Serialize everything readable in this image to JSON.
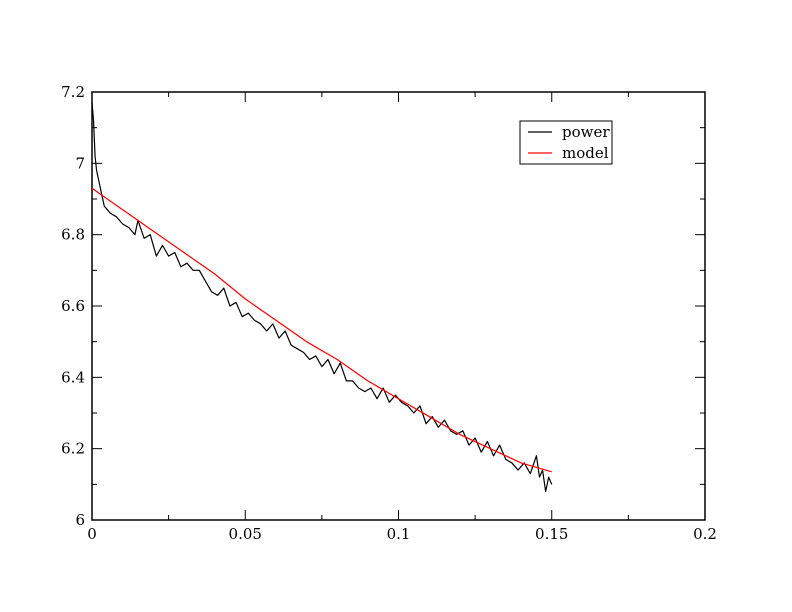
{
  "chart_data": {
    "type": "line",
    "title": "",
    "xlabel": "",
    "ylabel": "",
    "xlim": [
      0,
      0.2
    ],
    "ylim": [
      6.0,
      7.2
    ],
    "x_ticks": [
      0,
      0.05,
      0.1,
      0.15,
      0.2
    ],
    "x_tick_labels": [
      "0",
      "0.05",
      "0.1",
      "0.15",
      "0.2"
    ],
    "y_ticks": [
      6.0,
      6.2,
      6.4,
      6.6,
      6.8,
      7.0,
      7.2
    ],
    "y_tick_labels": [
      "6",
      "6.2",
      "6.4",
      "6.6",
      "6.8",
      "7",
      "7.2"
    ],
    "grid": false,
    "legend_position": "top-right",
    "series": [
      {
        "name": "power",
        "color": "#000000",
        "x": [
          0.0,
          0.0005,
          0.001,
          0.0015,
          0.002,
          0.0025,
          0.003,
          0.004,
          0.005,
          0.006,
          0.008,
          0.01,
          0.012,
          0.014,
          0.015,
          0.017,
          0.019,
          0.021,
          0.023,
          0.025,
          0.027,
          0.029,
          0.031,
          0.033,
          0.035,
          0.037,
          0.039,
          0.041,
          0.043,
          0.045,
          0.047,
          0.049,
          0.051,
          0.053,
          0.055,
          0.057,
          0.059,
          0.061,
          0.063,
          0.065,
          0.067,
          0.069,
          0.071,
          0.073,
          0.075,
          0.077,
          0.079,
          0.081,
          0.083,
          0.085,
          0.087,
          0.089,
          0.091,
          0.093,
          0.095,
          0.097,
          0.099,
          0.101,
          0.103,
          0.105,
          0.107,
          0.109,
          0.111,
          0.113,
          0.115,
          0.117,
          0.119,
          0.121,
          0.123,
          0.125,
          0.127,
          0.129,
          0.131,
          0.133,
          0.135,
          0.137,
          0.139,
          0.141,
          0.143,
          0.145,
          0.146,
          0.147,
          0.148,
          0.149,
          0.15
        ],
        "values": [
          7.17,
          7.12,
          7.02,
          6.98,
          6.96,
          6.94,
          6.92,
          6.88,
          6.87,
          6.86,
          6.85,
          6.83,
          6.82,
          6.8,
          6.84,
          6.79,
          6.8,
          6.74,
          6.77,
          6.74,
          6.75,
          6.71,
          6.72,
          6.7,
          6.7,
          6.67,
          6.64,
          6.63,
          6.65,
          6.6,
          6.61,
          6.57,
          6.58,
          6.56,
          6.55,
          6.53,
          6.55,
          6.51,
          6.53,
          6.49,
          6.48,
          6.47,
          6.45,
          6.46,
          6.43,
          6.45,
          6.41,
          6.44,
          6.39,
          6.39,
          6.37,
          6.36,
          6.37,
          6.34,
          6.37,
          6.33,
          6.35,
          6.33,
          6.32,
          6.3,
          6.32,
          6.27,
          6.29,
          6.26,
          6.28,
          6.25,
          6.24,
          6.25,
          6.21,
          6.23,
          6.19,
          6.22,
          6.18,
          6.21,
          6.17,
          6.16,
          6.14,
          6.16,
          6.13,
          6.18,
          6.12,
          6.14,
          6.08,
          6.12,
          6.1
        ]
      },
      {
        "name": "model",
        "color": "#ff0000",
        "x": [
          0.0,
          0.01,
          0.02,
          0.03,
          0.04,
          0.05,
          0.06,
          0.07,
          0.08,
          0.09,
          0.1,
          0.11,
          0.12,
          0.13,
          0.14,
          0.15
        ],
        "values": [
          6.93,
          6.87,
          6.81,
          6.75,
          6.69,
          6.62,
          6.56,
          6.5,
          6.45,
          6.39,
          6.34,
          6.29,
          6.24,
          6.2,
          6.16,
          6.135
        ]
      }
    ]
  }
}
